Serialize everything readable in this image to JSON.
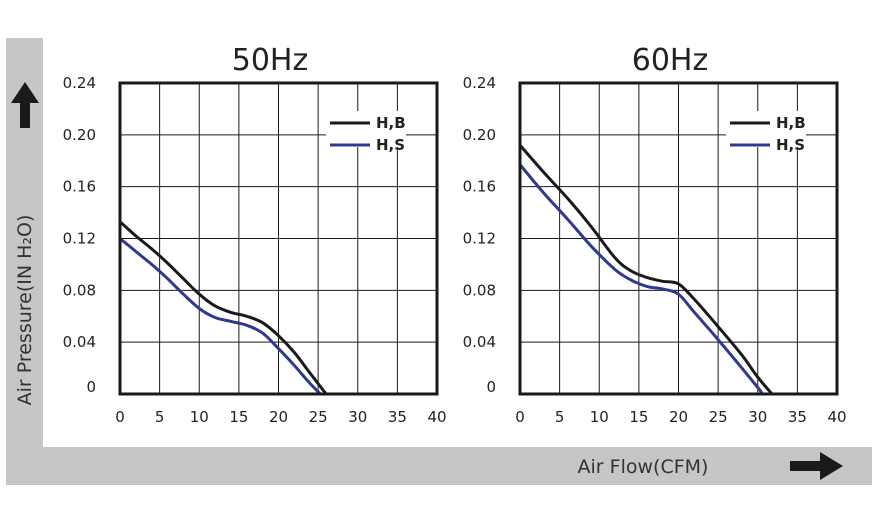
{
  "figure": {
    "ylabel": "Air Pressure(IN H₂O)",
    "xlabel": "Air Flow(CFM)",
    "colors": {
      "band": "#c6c6c6",
      "arrow": "#1a1a1a",
      "grid": "#1a1a1a"
    }
  },
  "chart_data": [
    {
      "type": "line",
      "title": "50Hz",
      "xlabel": "Air Flow(CFM)",
      "ylabel": "Air Pressure(IN H₂O)",
      "xlim": [
        0,
        40
      ],
      "ylim": [
        0,
        0.24
      ],
      "xticks": [
        "0",
        "5",
        "10",
        "15",
        "20",
        "25",
        "30",
        "35",
        "40"
      ],
      "yticks": [
        "0",
        "0.04",
        "0.08",
        "0.12",
        "0.16",
        "0.20",
        "0.24"
      ],
      "grid": true,
      "legend": "top-right",
      "series": [
        {
          "name": "H,B",
          "color": "#1a1a1a",
          "points": [
            [
              0,
              0.133
            ],
            [
              2,
              0.122
            ],
            [
              4,
              0.112
            ],
            [
              6,
              0.101
            ],
            [
              8,
              0.089
            ],
            [
              10,
              0.077
            ],
            [
              12,
              0.068
            ],
            [
              14,
              0.063
            ],
            [
              16,
              0.06
            ],
            [
              18,
              0.055
            ],
            [
              20,
              0.045
            ],
            [
              22,
              0.032
            ],
            [
              24,
              0.016
            ],
            [
              26,
              0.0
            ]
          ]
        },
        {
          "name": "H,S",
          "color": "#303890",
          "points": [
            [
              0,
              0.12
            ],
            [
              2,
              0.11
            ],
            [
              4,
              0.1
            ],
            [
              6,
              0.089
            ],
            [
              8,
              0.077
            ],
            [
              10,
              0.066
            ],
            [
              12,
              0.059
            ],
            [
              14,
              0.056
            ],
            [
              16,
              0.053
            ],
            [
              18,
              0.047
            ],
            [
              20,
              0.035
            ],
            [
              22,
              0.022
            ],
            [
              24,
              0.008
            ],
            [
              25.3,
              0.0
            ]
          ]
        }
      ]
    },
    {
      "type": "line",
      "title": "60Hz",
      "xlabel": "Air Flow(CFM)",
      "ylabel": "Air Pressure(IN H₂O)",
      "xlim": [
        0,
        40
      ],
      "ylim": [
        0,
        0.24
      ],
      "xticks": [
        "0",
        "5",
        "10",
        "15",
        "20",
        "25",
        "30",
        "35",
        "40"
      ],
      "yticks": [
        "0",
        "0.04",
        "0.08",
        "0.12",
        "0.16",
        "0.20",
        "0.24"
      ],
      "grid": true,
      "legend": "top-right",
      "series": [
        {
          "name": "H,B",
          "color": "#1a1a1a",
          "points": [
            [
              0,
              0.192
            ],
            [
              3,
              0.171
            ],
            [
              6,
              0.151
            ],
            [
              9,
              0.129
            ],
            [
              12,
              0.105
            ],
            [
              14,
              0.095
            ],
            [
              16,
              0.09
            ],
            [
              18,
              0.087
            ],
            [
              20,
              0.085
            ],
            [
              22,
              0.073
            ],
            [
              25,
              0.052
            ],
            [
              28,
              0.03
            ],
            [
              30,
              0.013
            ],
            [
              31.8,
              0.0
            ]
          ]
        },
        {
          "name": "H,S",
          "color": "#303890",
          "points": [
            [
              0,
              0.177
            ],
            [
              3,
              0.155
            ],
            [
              6,
              0.135
            ],
            [
              9,
              0.114
            ],
            [
              12,
              0.096
            ],
            [
              14,
              0.088
            ],
            [
              16,
              0.083
            ],
            [
              18,
              0.081
            ],
            [
              20,
              0.077
            ],
            [
              22,
              0.063
            ],
            [
              25,
              0.042
            ],
            [
              28,
              0.02
            ],
            [
              30,
              0.005
            ],
            [
              30.6,
              0.0
            ]
          ]
        }
      ]
    }
  ]
}
